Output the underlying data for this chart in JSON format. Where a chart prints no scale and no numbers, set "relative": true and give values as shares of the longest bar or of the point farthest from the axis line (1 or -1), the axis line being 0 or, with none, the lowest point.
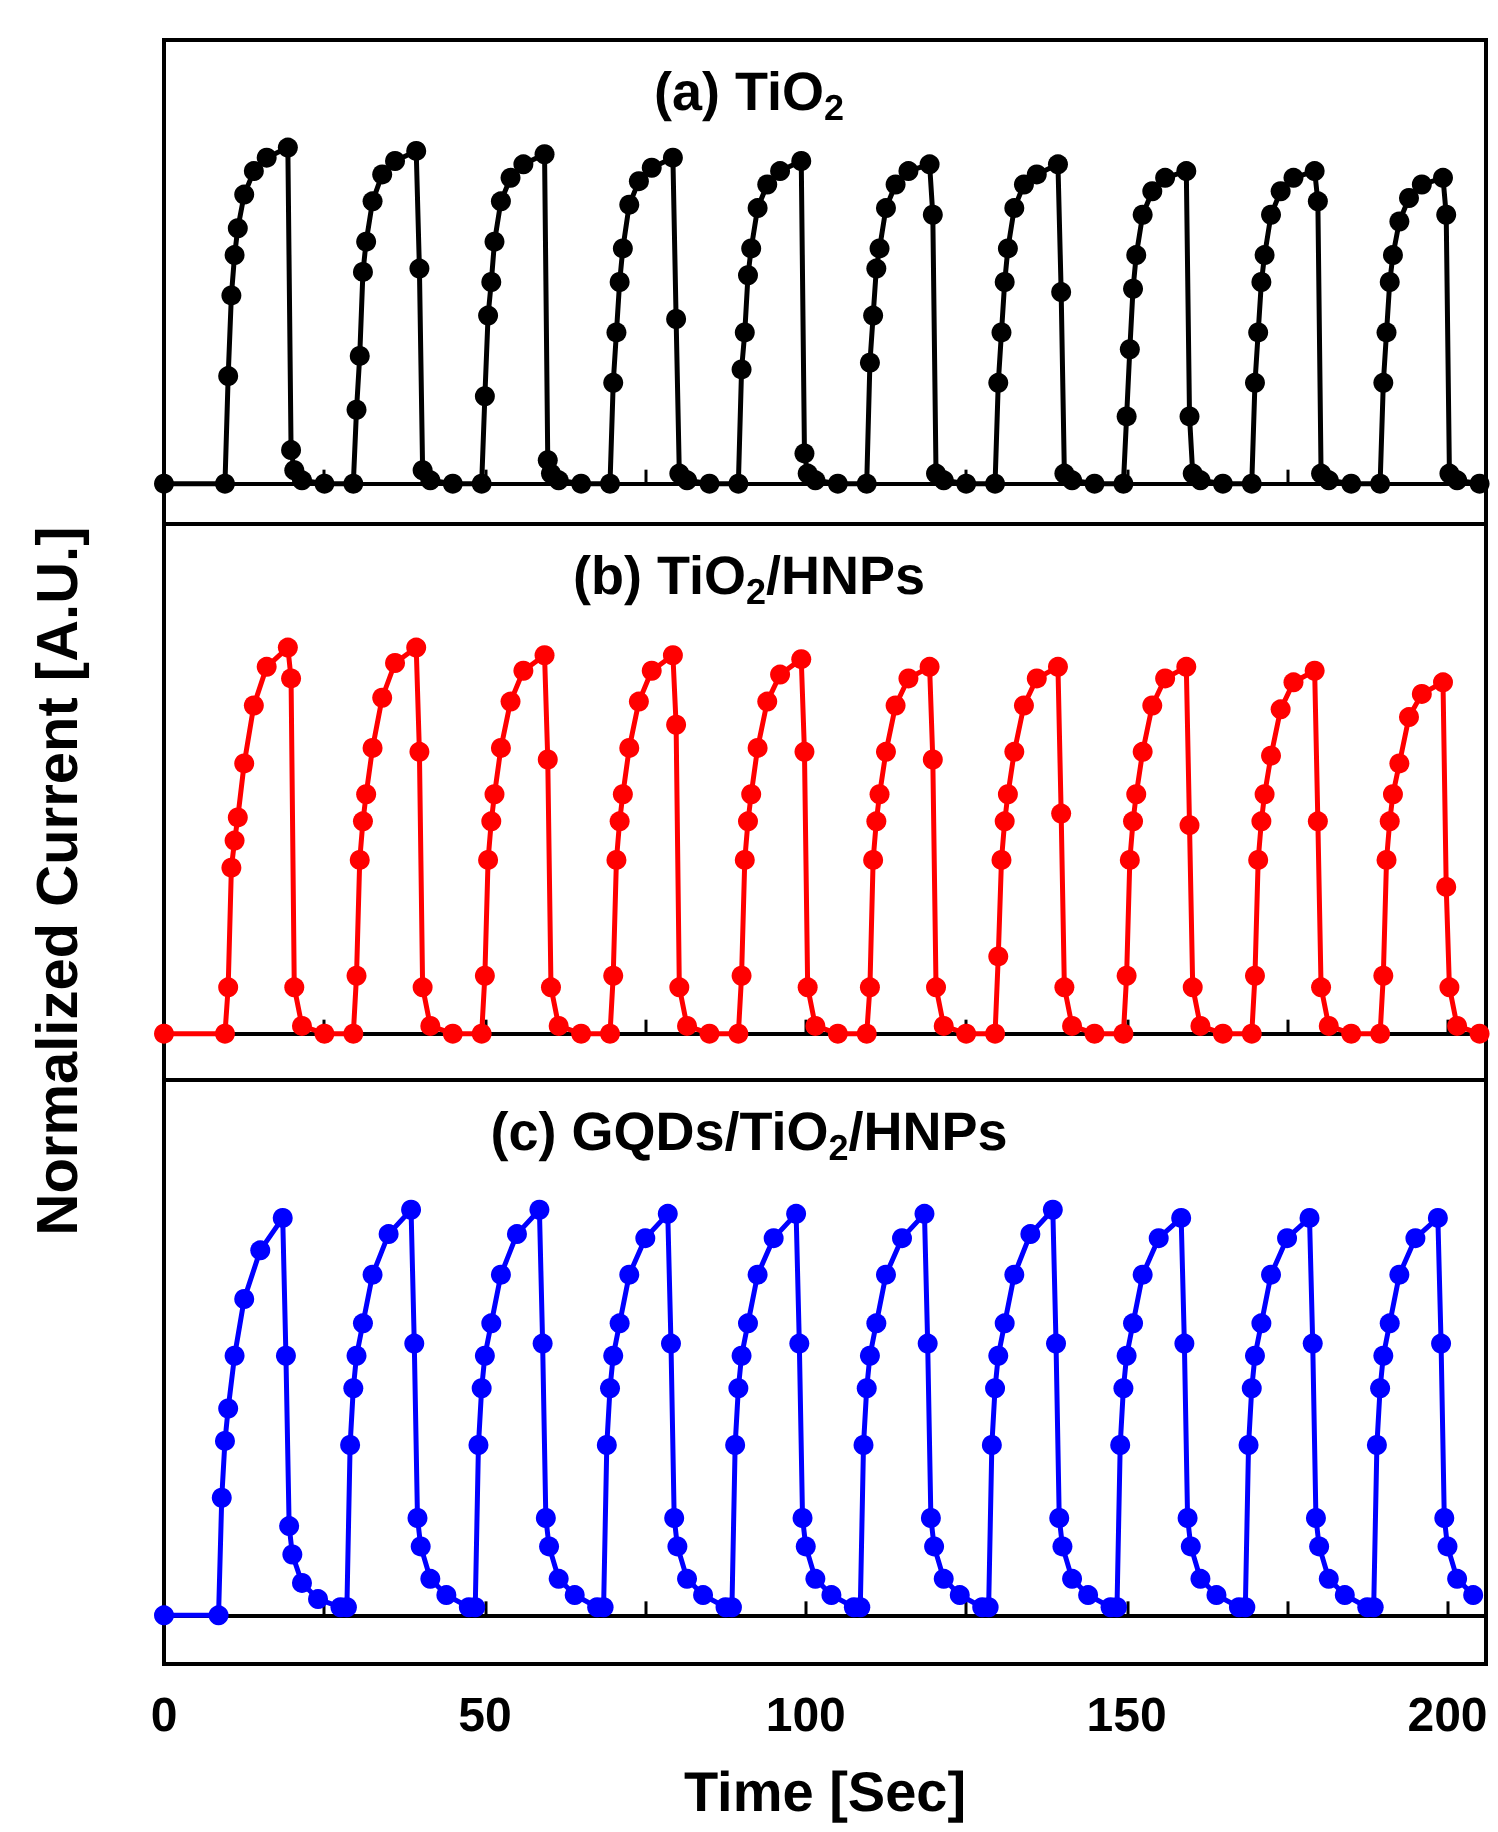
{
  "chart_data": [
    {
      "type": "line",
      "title": "(a) TiO$_{2}$",
      "relative": true,
      "marker": "circle",
      "line_style": "solid",
      "tick_labels": false,
      "xlim": [
        0,
        206
      ],
      "xticks": [
        0,
        {
          "value": 25,
          "label": null
        },
        50,
        {
          "value": 75,
          "label": null
        },
        100,
        {
          "value": 125,
          "label": null
        },
        150,
        {
          "value": 175,
          "label": null
        },
        200
      ],
      "x": [
        0,
        9.5,
        10,
        10.5,
        11,
        11.5,
        12.5,
        14,
        16,
        19.3,
        19.8,
        20.3,
        21.5,
        25,
        29.5,
        30,
        30.5,
        31,
        31.5,
        32.5,
        34,
        36,
        39.3,
        39.8,
        40.3,
        41.5,
        45,
        49.5,
        50,
        50.5,
        51,
        51.5,
        52.5,
        54,
        56,
        59.3,
        59.8,
        60.3,
        61.5,
        65,
        69.5,
        70,
        70.5,
        71,
        71.5,
        72.5,
        74,
        76,
        79.3,
        79.8,
        80.3,
        81.5,
        85,
        89.5,
        90,
        90.5,
        91,
        91.5,
        92.5,
        94,
        96,
        99.3,
        99.8,
        100.3,
        101.5,
        105,
        109.5,
        110,
        110.5,
        111,
        111.5,
        112.5,
        114,
        116,
        119.3,
        119.8,
        120.3,
        121.5,
        125,
        129.5,
        130,
        130.5,
        131,
        131.5,
        132.5,
        134,
        136,
        139.3,
        139.8,
        140.3,
        141.5,
        145,
        149.5,
        150,
        150.5,
        151,
        151.5,
        152.5,
        154,
        156,
        159.3,
        159.8,
        160.3,
        161.5,
        165,
        169.5,
        170,
        170.5,
        171,
        171.5,
        172.5,
        174,
        176,
        179.3,
        179.8,
        180.3,
        181.5,
        185,
        189.5,
        190,
        190.5,
        191,
        191.5,
        192.5,
        194,
        196,
        199.3,
        199.8,
        200.3,
        201.5,
        205
      ],
      "series": [
        {
          "color": "#000000",
          "values": [
            0,
            0,
            0.32,
            0.56,
            0.68,
            0.76,
            0.86,
            0.93,
            0.97,
            1.0,
            0.1,
            0.04,
            0.01,
            0,
            0,
            0.22,
            0.38,
            0.63,
            0.72,
            0.84,
            0.92,
            0.96,
            0.99,
            0.64,
            0.04,
            0.01,
            0,
            0,
            0.26,
            0.5,
            0.6,
            0.72,
            0.84,
            0.91,
            0.95,
            0.98,
            0.07,
            0.03,
            0.01,
            0,
            0,
            0.3,
            0.45,
            0.6,
            0.7,
            0.83,
            0.9,
            0.94,
            0.97,
            0.49,
            0.03,
            0.01,
            0,
            0,
            0.34,
            0.45,
            0.62,
            0.7,
            0.82,
            0.89,
            0.93,
            0.96,
            0.09,
            0.03,
            0.01,
            0,
            0,
            0.36,
            0.5,
            0.64,
            0.7,
            0.82,
            0.89,
            0.93,
            0.95,
            0.8,
            0.03,
            0.01,
            0,
            0,
            0.3,
            0.45,
            0.6,
            0.7,
            0.82,
            0.89,
            0.92,
            0.95,
            0.57,
            0.03,
            0.01,
            0,
            0,
            0.2,
            0.4,
            0.58,
            0.68,
            0.8,
            0.87,
            0.91,
            0.93,
            0.2,
            0.03,
            0.01,
            0,
            0,
            0.3,
            0.45,
            0.6,
            0.68,
            0.8,
            0.87,
            0.91,
            0.93,
            0.84,
            0.03,
            0.01,
            0,
            0,
            0.3,
            0.45,
            0.6,
            0.68,
            0.78,
            0.85,
            0.89,
            0.91,
            0.8,
            0.03,
            0.01,
            0
          ]
        }
      ]
    },
    {
      "type": "line",
      "title": "(b) TiO$_{2}$/HNPs",
      "ylabel": "Normalized Current [A.U.]",
      "relative": true,
      "marker": "circle",
      "line_style": "solid",
      "tick_labels": false,
      "xlim": [
        0,
        206
      ],
      "xticks": [
        0,
        {
          "value": 25,
          "label": null
        },
        50,
        {
          "value": 75,
          "label": null
        },
        100,
        {
          "value": 125,
          "label": null
        },
        150,
        {
          "value": 175,
          "label": null
        },
        200
      ],
      "x": [
        0,
        9.5,
        10,
        10.5,
        11,
        11.5,
        12.5,
        14,
        16,
        19.3,
        19.8,
        20.3,
        21.5,
        25,
        29.5,
        30,
        30.5,
        31,
        31.5,
        32.5,
        34,
        36,
        39.3,
        39.8,
        40.3,
        41.5,
        45,
        49.5,
        50,
        50.5,
        51,
        51.5,
        52.5,
        54,
        56,
        59.3,
        59.8,
        60.3,
        61.5,
        65,
        69.5,
        70,
        70.5,
        71,
        71.5,
        72.5,
        74,
        76,
        79.3,
        79.8,
        80.3,
        81.5,
        85,
        89.5,
        90,
        90.5,
        91,
        91.5,
        92.5,
        94,
        96,
        99.3,
        99.8,
        100.3,
        101.5,
        105,
        109.5,
        110,
        110.5,
        111,
        111.5,
        112.5,
        114,
        116,
        119.3,
        119.8,
        120.3,
        121.5,
        125,
        129.5,
        130,
        130.5,
        131,
        131.5,
        132.5,
        134,
        136,
        139.3,
        139.8,
        140.3,
        141.5,
        145,
        149.5,
        150,
        150.5,
        151,
        151.5,
        152.5,
        154,
        156,
        159.3,
        159.8,
        160.3,
        161.5,
        165,
        169.5,
        170,
        170.5,
        171,
        171.5,
        172.5,
        174,
        176,
        179.3,
        179.8,
        180.3,
        181.5,
        185,
        189.5,
        190,
        190.5,
        191,
        191.5,
        192.5,
        194,
        196,
        199.3,
        199.8,
        200.3,
        201.5,
        205
      ],
      "series": [
        {
          "color": "#ff0000",
          "values": [
            0,
            0,
            0.12,
            0.43,
            0.5,
            0.56,
            0.7,
            0.85,
            0.95,
            1.0,
            0.92,
            0.12,
            0.02,
            0,
            0,
            0.15,
            0.45,
            0.55,
            0.62,
            0.74,
            0.87,
            0.96,
            1.0,
            0.73,
            0.12,
            0.02,
            0,
            0,
            0.15,
            0.45,
            0.55,
            0.62,
            0.74,
            0.86,
            0.94,
            0.98,
            0.71,
            0.12,
            0.02,
            0,
            0,
            0.15,
            0.45,
            0.55,
            0.62,
            0.74,
            0.86,
            0.94,
            0.98,
            0.8,
            0.12,
            0.02,
            0,
            0,
            0.15,
            0.45,
            0.55,
            0.62,
            0.74,
            0.86,
            0.93,
            0.97,
            0.73,
            0.12,
            0.02,
            0,
            0,
            0.12,
            0.45,
            0.55,
            0.62,
            0.73,
            0.85,
            0.92,
            0.95,
            0.71,
            0.12,
            0.02,
            0,
            0,
            0.2,
            0.45,
            0.55,
            0.62,
            0.73,
            0.85,
            0.92,
            0.95,
            0.57,
            0.12,
            0.02,
            0,
            0,
            0.15,
            0.45,
            0.55,
            0.62,
            0.73,
            0.85,
            0.92,
            0.95,
            0.54,
            0.12,
            0.02,
            0,
            0,
            0.15,
            0.45,
            0.55,
            0.62,
            0.72,
            0.84,
            0.91,
            0.94,
            0.55,
            0.12,
            0.02,
            0,
            0,
            0.15,
            0.45,
            0.55,
            0.62,
            0.7,
            0.82,
            0.88,
            0.91,
            0.38,
            0.12,
            0.02,
            0
          ]
        }
      ]
    },
    {
      "type": "line",
      "title": "(c) GQDs/TiO$_{2}$/HNPs",
      "xlabel": "Time [Sec]",
      "relative": true,
      "marker": "circle",
      "line_style": "solid",
      "tick_labels": "x",
      "xlim": [
        0,
        206
      ],
      "xticks": [
        0,
        {
          "value": 25,
          "label": null
        },
        50,
        {
          "value": 75,
          "label": null
        },
        100,
        {
          "value": 125,
          "label": null
        },
        150,
        {
          "value": 175,
          "label": null
        },
        200
      ],
      "x": [
        0,
        8.5,
        9,
        9.5,
        10,
        11,
        12.5,
        15,
        18.5,
        19,
        19.5,
        20,
        21.5,
        24,
        27.5,
        28.5,
        29,
        29.5,
        30,
        31,
        32.5,
        35,
        38.5,
        39,
        39.5,
        40,
        41.5,
        44,
        47.5,
        48.5,
        49,
        49.5,
        50,
        51,
        52.5,
        55,
        58.5,
        59,
        59.5,
        60,
        61.5,
        64,
        67.5,
        68.5,
        69,
        69.5,
        70,
        71,
        72.5,
        75,
        78.5,
        79,
        79.5,
        80,
        81.5,
        84,
        87.5,
        88.5,
        89,
        89.5,
        90,
        91,
        92.5,
        95,
        98.5,
        99,
        99.5,
        100,
        101.5,
        104,
        107.5,
        108.5,
        109,
        109.5,
        110,
        111,
        112.5,
        115,
        118.5,
        119,
        119.5,
        120,
        121.5,
        124,
        127.5,
        128.5,
        129,
        129.5,
        130,
        131,
        132.5,
        135,
        138.5,
        139,
        139.5,
        140,
        141.5,
        144,
        147.5,
        148.5,
        149,
        149.5,
        150,
        151,
        152.5,
        155,
        158.5,
        159,
        159.5,
        160,
        161.5,
        164,
        167.5,
        168.5,
        169,
        169.5,
        170,
        171,
        172.5,
        175,
        178.5,
        179,
        179.5,
        180,
        181.5,
        184,
        187.5,
        188.5,
        189,
        189.5,
        190,
        191,
        192.5,
        195,
        198.5,
        199,
        199.5,
        200,
        201.5,
        204
      ],
      "series": [
        {
          "color": "#0000ff",
          "values": [
            0,
            0,
            0.29,
            0.43,
            0.51,
            0.64,
            0.78,
            0.9,
            0.98,
            0.64,
            0.22,
            0.15,
            0.08,
            0.04,
            0.02,
            0.02,
            0.42,
            0.56,
            0.64,
            0.72,
            0.84,
            0.94,
            1.0,
            0.67,
            0.24,
            0.17,
            0.09,
            0.05,
            0.02,
            0.02,
            0.42,
            0.56,
            0.64,
            0.72,
            0.84,
            0.94,
            1.0,
            0.67,
            0.24,
            0.17,
            0.09,
            0.05,
            0.02,
            0.02,
            0.42,
            0.56,
            0.64,
            0.72,
            0.84,
            0.93,
            0.99,
            0.67,
            0.24,
            0.17,
            0.09,
            0.05,
            0.02,
            0.02,
            0.42,
            0.56,
            0.64,
            0.72,
            0.84,
            0.93,
            0.99,
            0.67,
            0.24,
            0.17,
            0.09,
            0.05,
            0.02,
            0.02,
            0.42,
            0.56,
            0.64,
            0.72,
            0.84,
            0.93,
            0.99,
            0.67,
            0.24,
            0.17,
            0.09,
            0.05,
            0.02,
            0.02,
            0.42,
            0.56,
            0.64,
            0.72,
            0.84,
            0.94,
            1.0,
            0.67,
            0.24,
            0.17,
            0.09,
            0.05,
            0.02,
            0.02,
            0.42,
            0.56,
            0.64,
            0.72,
            0.84,
            0.93,
            0.98,
            0.67,
            0.24,
            0.17,
            0.09,
            0.05,
            0.02,
            0.02,
            0.42,
            0.56,
            0.64,
            0.72,
            0.84,
            0.93,
            0.98,
            0.67,
            0.24,
            0.17,
            0.09,
            0.05,
            0.02,
            0.02,
            0.42,
            0.56,
            0.64,
            0.72,
            0.84,
            0.93,
            0.98,
            0.67,
            0.24,
            0.17,
            0.09,
            0.05
          ]
        }
      ]
    }
  ]
}
